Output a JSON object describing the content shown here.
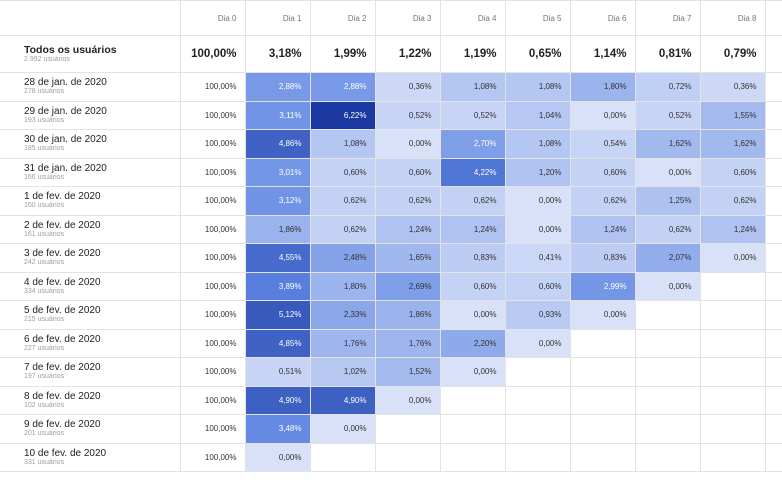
{
  "table": {
    "columns": [
      "Dia 0",
      "Dia 1",
      "Dia 2",
      "Dia 3",
      "Dia 4",
      "Dia 5",
      "Dia 6",
      "Dia 7",
      "Dia 8"
    ],
    "total": {
      "label": "Todos os usuários",
      "sub": "2.992 usuários",
      "values": [
        "100,00%",
        "3,18%",
        "1,99%",
        "1,22%",
        "1,19%",
        "0,65%",
        "1,14%",
        "0,81%",
        "0,79%"
      ]
    },
    "rows": [
      {
        "label": "28 de jan. de 2020",
        "sub": "278 usuários",
        "values": [
          "100,00%",
          "2,88%",
          "2,88%",
          "0,36%",
          "1,08%",
          "1,08%",
          "1,80%",
          "0,72%",
          "0,36%"
        ]
      },
      {
        "label": "29 de jan. de 2020",
        "sub": "193 usuários",
        "values": [
          "100,00%",
          "3,11%",
          "6,22%",
          "0,52%",
          "0,52%",
          "1,04%",
          "0,00%",
          "0,52%",
          "1,55%"
        ]
      },
      {
        "label": "30 de jan. de 2020",
        "sub": "185 usuários",
        "values": [
          "100,00%",
          "4,86%",
          "1,08%",
          "0,00%",
          "2,70%",
          "1,08%",
          "0,54%",
          "1,62%",
          "1,62%"
        ]
      },
      {
        "label": "31 de jan. de 2020",
        "sub": "166 usuários",
        "values": [
          "100,00%",
          "3,01%",
          "0,60%",
          "0,60%",
          "4,22%",
          "1,20%",
          "0,60%",
          "0,00%",
          "0,60%"
        ]
      },
      {
        "label": "1 de fev. de 2020",
        "sub": "160 usuários",
        "values": [
          "100,00%",
          "3,12%",
          "0,62%",
          "0,62%",
          "0,62%",
          "0,00%",
          "0,62%",
          "1,25%",
          "0,62%"
        ]
      },
      {
        "label": "2 de fev. de 2020",
        "sub": "161 usuários",
        "values": [
          "100,00%",
          "1,86%",
          "0,62%",
          "1,24%",
          "1,24%",
          "0,00%",
          "1,24%",
          "0,62%",
          "1,24%"
        ]
      },
      {
        "label": "3 de fev. de 2020",
        "sub": "242 usuários",
        "values": [
          "100,00%",
          "4,55%",
          "2,48%",
          "1,65%",
          "0,83%",
          "0,41%",
          "0,83%",
          "2,07%",
          "0,00%"
        ]
      },
      {
        "label": "4 de fev. de 2020",
        "sub": "334 usuários",
        "values": [
          "100,00%",
          "3,89%",
          "1,80%",
          "2,69%",
          "0,60%",
          "0,60%",
          "2,99%",
          "0,00%"
        ]
      },
      {
        "label": "5 de fev. de 2020",
        "sub": "215 usuários",
        "values": [
          "100,00%",
          "5,12%",
          "2,33%",
          "1,86%",
          "0,00%",
          "0,93%",
          "0,00%"
        ]
      },
      {
        "label": "6 de fev. de 2020",
        "sub": "227 usuários",
        "values": [
          "100,00%",
          "4,85%",
          "1,76%",
          "1,76%",
          "2,20%",
          "0,00%"
        ]
      },
      {
        "label": "7 de fev. de 2020",
        "sub": "197 usuários",
        "values": [
          "100,00%",
          "0,51%",
          "1,02%",
          "1,52%",
          "0,00%"
        ]
      },
      {
        "label": "8 de fev. de 2020",
        "sub": "102 usuários",
        "values": [
          "100,00%",
          "4,90%",
          "4,90%",
          "0,00%"
        ]
      },
      {
        "label": "9 de fev. de 2020",
        "sub": "201 usuários",
        "values": [
          "100,00%",
          "3,48%",
          "0,00%"
        ]
      },
      {
        "label": "10 de fev. de 2020",
        "sub": "331 usuários",
        "values": [
          "100,00%",
          "0,00%"
        ]
      }
    ]
  }
}
